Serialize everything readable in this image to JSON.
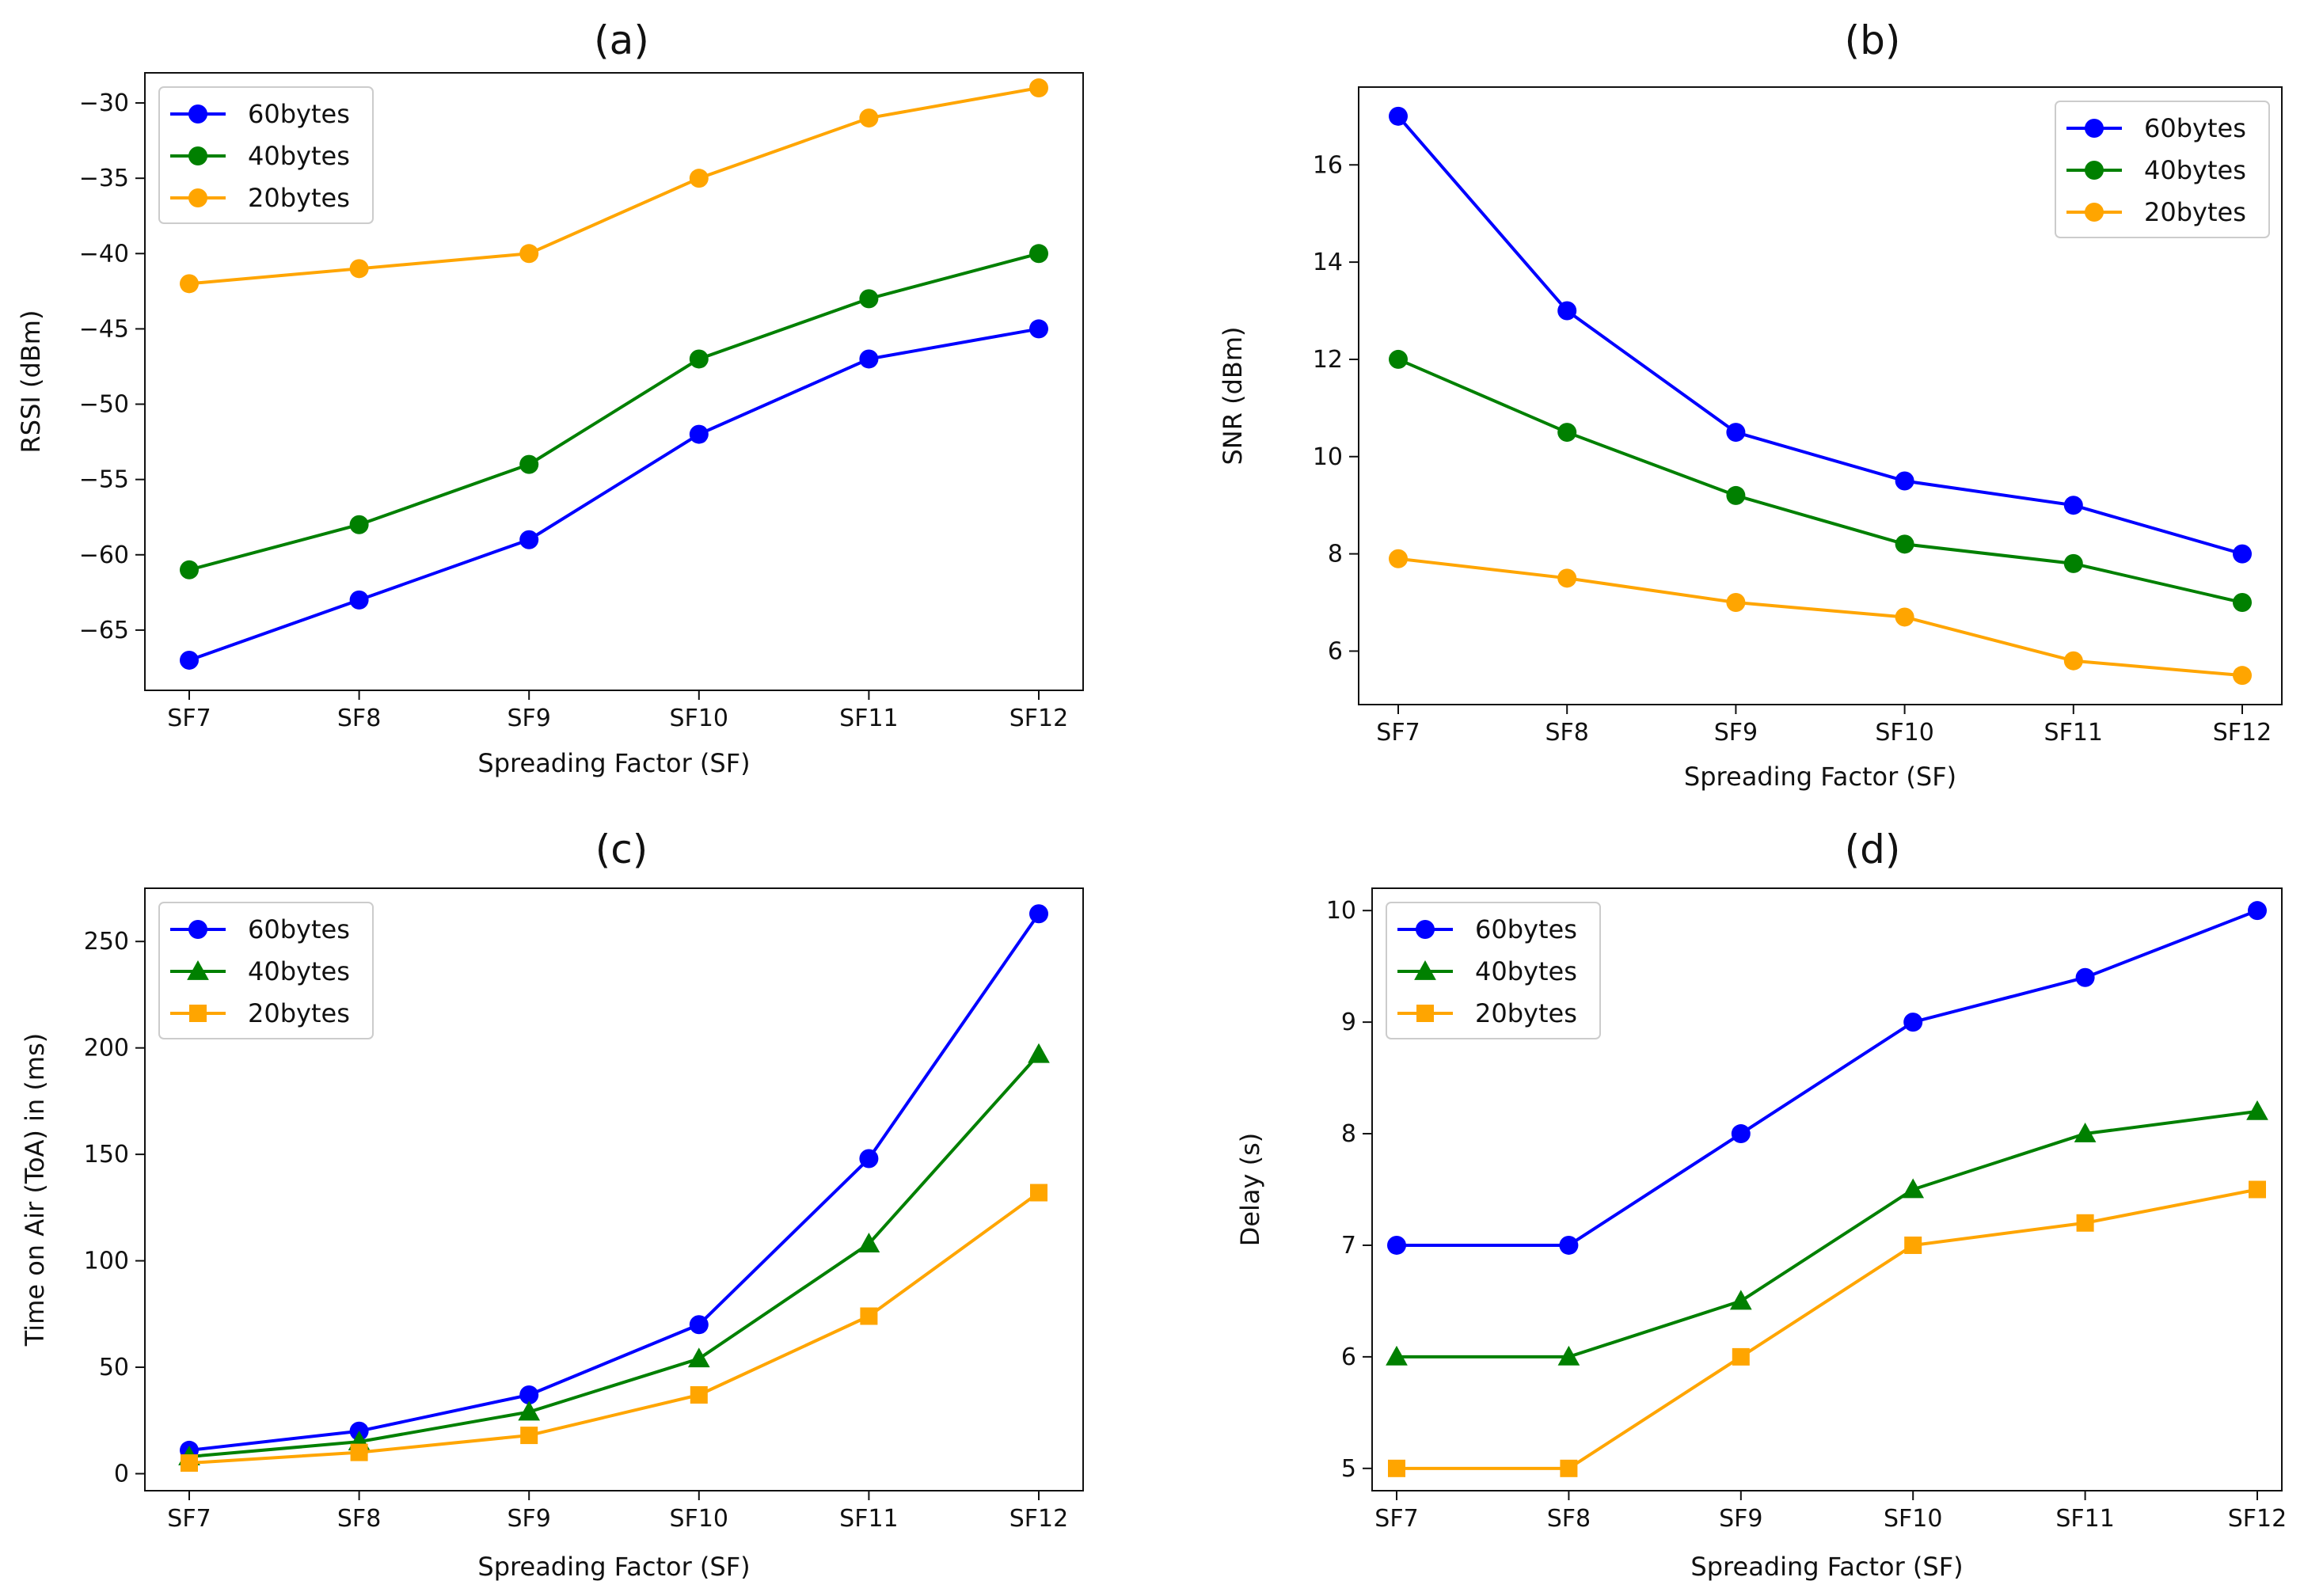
{
  "chart_data": [
    {
      "panel": "a",
      "type": "line",
      "title": "(a)",
      "xlabel": "Spreading Factor (SF)",
      "ylabel": "RSSI (dBm)",
      "categories": [
        "SF7",
        "SF8",
        "SF9",
        "SF10",
        "SF11",
        "SF12"
      ],
      "ylim": [
        -69,
        -28
      ],
      "yticks": [
        -65,
        -60,
        -55,
        -50,
        -45,
        -40,
        -35,
        -30
      ],
      "legend": "top-left",
      "series": [
        {
          "name": "60bytes",
          "color": "#0000ff",
          "marker": "circle",
          "values": [
            -67,
            -63,
            -59,
            -52,
            -47,
            -45
          ]
        },
        {
          "name": "40bytes",
          "color": "#008000",
          "marker": "circle",
          "values": [
            -61,
            -58,
            -54,
            -47,
            -43,
            -40
          ]
        },
        {
          "name": "20bytes",
          "color": "#ffa500",
          "marker": "circle",
          "values": [
            -42,
            -41,
            -40,
            -35,
            -31,
            -29
          ]
        }
      ]
    },
    {
      "panel": "b",
      "type": "line",
      "title": "(b)",
      "xlabel": "Spreading Factor (SF)",
      "ylabel": "SNR (dBm)",
      "categories": [
        "SF7",
        "SF8",
        "SF9",
        "SF10",
        "SF11",
        "SF12"
      ],
      "ylim": [
        4.9,
        17.6
      ],
      "yticks": [
        6,
        8,
        10,
        12,
        14,
        16
      ],
      "legend": "top-right",
      "series": [
        {
          "name": "60bytes",
          "color": "#0000ff",
          "marker": "circle",
          "values": [
            17,
            13,
            10.5,
            9.5,
            9,
            8
          ]
        },
        {
          "name": "40bytes",
          "color": "#008000",
          "marker": "circle",
          "values": [
            12,
            10.5,
            9.2,
            8.2,
            7.8,
            7
          ]
        },
        {
          "name": "20bytes",
          "color": "#ffa500",
          "marker": "circle",
          "values": [
            7.9,
            7.5,
            7,
            6.7,
            5.8,
            5.5
          ]
        }
      ]
    },
    {
      "panel": "c",
      "type": "line",
      "title": "(c)",
      "xlabel": "Spreading Factor (SF)",
      "ylabel": "Time on Air (ToA) in (ms)",
      "categories": [
        "SF7",
        "SF8",
        "SF9",
        "SF10",
        "SF11",
        "SF12"
      ],
      "ylim": [
        -8,
        275
      ],
      "yticks": [
        0,
        50,
        100,
        150,
        200,
        250
      ],
      "legend": "top-left",
      "series": [
        {
          "name": "60bytes",
          "color": "#0000ff",
          "marker": "circle",
          "values": [
            11,
            20,
            37,
            70,
            148,
            263
          ]
        },
        {
          "name": "40bytes",
          "color": "#008000",
          "marker": "triangle",
          "values": [
            8,
            15,
            29,
            54,
            108,
            197
          ]
        },
        {
          "name": "20bytes",
          "color": "#ffa500",
          "marker": "square",
          "values": [
            5,
            10,
            18,
            37,
            74,
            132
          ]
        }
      ]
    },
    {
      "panel": "d",
      "type": "line",
      "title": "(d)",
      "xlabel": "Spreading Factor (SF)",
      "ylabel": "Delay (s)",
      "categories": [
        "SF7",
        "SF8",
        "SF9",
        "SF10",
        "SF11",
        "SF12"
      ],
      "ylim": [
        4.8,
        10.2
      ],
      "yticks": [
        5,
        6,
        7,
        8,
        9,
        10
      ],
      "legend": "top-left",
      "series": [
        {
          "name": "60bytes",
          "color": "#0000ff",
          "marker": "circle",
          "values": [
            7,
            7,
            8,
            9,
            9.4,
            10
          ]
        },
        {
          "name": "40bytes",
          "color": "#008000",
          "marker": "triangle",
          "values": [
            6,
            6,
            6.5,
            7.5,
            8,
            8.2
          ]
        },
        {
          "name": "20bytes",
          "color": "#ffa500",
          "marker": "square",
          "values": [
            5,
            5,
            6,
            7,
            7.2,
            7.5
          ]
        }
      ]
    }
  ]
}
